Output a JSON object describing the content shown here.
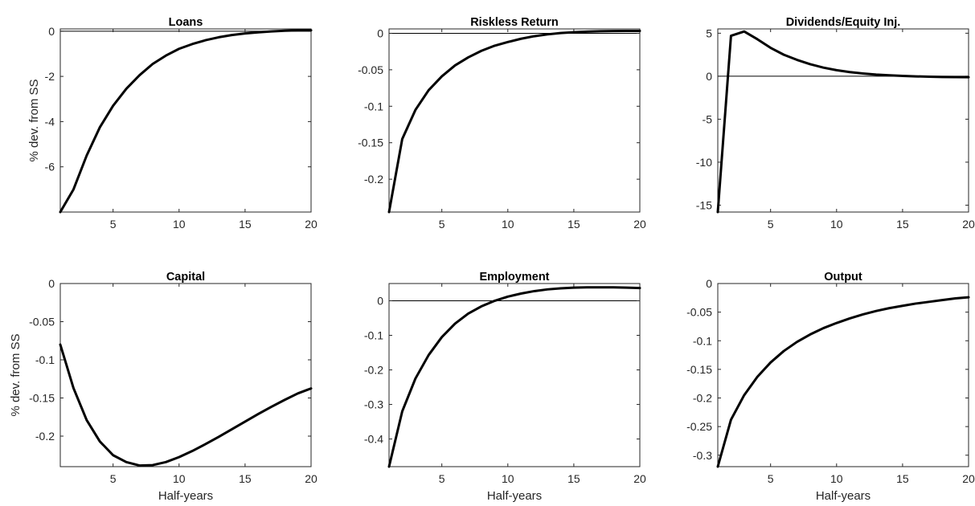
{
  "chart_data": [
    {
      "type": "line",
      "title": "Loans",
      "xlabel": "",
      "ylabel": "% dev. from SS",
      "xlim": [
        1,
        20
      ],
      "ylim": [
        -8,
        0.1
      ],
      "xticks": [
        5,
        10,
        15,
        20
      ],
      "yticks": [
        0,
        -2,
        -4,
        -6
      ],
      "ytick_labels": [
        "0",
        "-2",
        "-4",
        "-6"
      ],
      "zero_line": true,
      "x": [
        1,
        2,
        3,
        4,
        5,
        6,
        7,
        8,
        9,
        10,
        11,
        12,
        13,
        14,
        15,
        16,
        17,
        18,
        19,
        20
      ],
      "series": [
        {
          "values": [
            -8.0,
            -7.0,
            -5.5,
            -4.25,
            -3.3,
            -2.55,
            -1.95,
            -1.45,
            -1.08,
            -0.78,
            -0.57,
            -0.4,
            -0.27,
            -0.17,
            -0.1,
            -0.05,
            -0.01,
            0.02,
            0.04,
            0.04
          ],
          "color": "#000000"
        }
      ]
    },
    {
      "type": "line",
      "title": "Riskless Return",
      "xlabel": "",
      "ylabel": "",
      "xlim": [
        1,
        20
      ],
      "ylim": [
        -0.245,
        0.006
      ],
      "xticks": [
        5,
        10,
        15,
        20
      ],
      "yticks": [
        0,
        -0.05,
        -0.1,
        -0.15,
        -0.2
      ],
      "ytick_labels": [
        "0",
        "-0.05",
        "-0.1",
        "-0.15",
        "-0.2"
      ],
      "zero_line": true,
      "x": [
        1,
        2,
        3,
        4,
        5,
        6,
        7,
        8,
        9,
        10,
        11,
        12,
        13,
        14,
        15,
        16,
        17,
        18,
        19,
        20
      ],
      "series": [
        {
          "values": [
            -0.245,
            -0.145,
            -0.105,
            -0.078,
            -0.059,
            -0.044,
            -0.033,
            -0.024,
            -0.017,
            -0.012,
            -0.0075,
            -0.004,
            -0.0015,
            0.0003,
            0.0015,
            0.0023,
            0.0028,
            0.0031,
            0.0033,
            0.0033
          ],
          "color": "#000000"
        }
      ]
    },
    {
      "type": "line",
      "title": "Dividends/Equity Inj.",
      "xlabel": "",
      "ylabel": "",
      "xlim": [
        1,
        20
      ],
      "ylim": [
        -15.8,
        5.5
      ],
      "xticks": [
        5,
        10,
        15,
        20
      ],
      "yticks": [
        5,
        0,
        -5,
        -10,
        -15
      ],
      "ytick_labels": [
        "5",
        "0",
        "-5",
        "-10",
        "-15"
      ],
      "zero_line": true,
      "x": [
        1,
        2,
        3,
        4,
        5,
        6,
        7,
        8,
        9,
        10,
        11,
        12,
        13,
        14,
        15,
        16,
        17,
        18,
        19,
        20
      ],
      "series": [
        {
          "values": [
            -15.8,
            4.7,
            5.2,
            4.3,
            3.3,
            2.5,
            1.9,
            1.4,
            1.0,
            0.7,
            0.48,
            0.32,
            0.19,
            0.1,
            0.03,
            -0.02,
            -0.06,
            -0.09,
            -0.11,
            -0.12
          ],
          "color": "#000000"
        }
      ]
    },
    {
      "type": "line",
      "title": "Capital",
      "xlabel": "Half-years",
      "ylabel": "% dev. from SS",
      "xlim": [
        1,
        20
      ],
      "ylim": [
        -0.24,
        0
      ],
      "xticks": [
        5,
        10,
        15,
        20
      ],
      "yticks": [
        0,
        -0.05,
        -0.1,
        -0.15,
        -0.2
      ],
      "ytick_labels": [
        "0",
        "-0.05",
        "-0.1",
        "-0.15",
        "-0.2"
      ],
      "zero_line": false,
      "x": [
        1,
        2,
        3,
        4,
        5,
        6,
        7,
        8,
        9,
        10,
        11,
        12,
        13,
        14,
        15,
        16,
        17,
        18,
        19,
        20
      ],
      "series": [
        {
          "values": [
            -0.08,
            -0.137,
            -0.179,
            -0.207,
            -0.225,
            -0.234,
            -0.2385,
            -0.238,
            -0.234,
            -0.2275,
            -0.2195,
            -0.2105,
            -0.201,
            -0.191,
            -0.181,
            -0.171,
            -0.1615,
            -0.1525,
            -0.144,
            -0.1375
          ],
          "color": "#000000"
        }
      ]
    },
    {
      "type": "line",
      "title": "Employment",
      "xlabel": "Half-years",
      "ylabel": "",
      "xlim": [
        1,
        20
      ],
      "ylim": [
        -0.48,
        0.05
      ],
      "xticks": [
        5,
        10,
        15,
        20
      ],
      "yticks": [
        0,
        -0.1,
        -0.2,
        -0.3,
        -0.4
      ],
      "ytick_labels": [
        "0",
        "-0.1",
        "-0.2",
        "-0.3",
        "-0.4"
      ],
      "zero_line": true,
      "x": [
        1,
        2,
        3,
        4,
        5,
        6,
        7,
        8,
        9,
        10,
        11,
        12,
        13,
        14,
        15,
        16,
        17,
        18,
        19,
        20
      ],
      "series": [
        {
          "values": [
            -0.48,
            -0.32,
            -0.225,
            -0.157,
            -0.105,
            -0.066,
            -0.037,
            -0.016,
            0.0,
            0.012,
            0.021,
            0.028,
            0.033,
            0.036,
            0.038,
            0.039,
            0.039,
            0.039,
            0.038,
            0.037
          ],
          "color": "#000000"
        }
      ]
    },
    {
      "type": "line",
      "title": "Output",
      "xlabel": "Half-years",
      "ylabel": "",
      "xlim": [
        1,
        20
      ],
      "ylim": [
        -0.32,
        0
      ],
      "xticks": [
        5,
        10,
        15,
        20
      ],
      "yticks": [
        0,
        -0.05,
        -0.1,
        -0.15,
        -0.2,
        -0.25,
        -0.3
      ],
      "ytick_labels": [
        "0",
        "-0.05",
        "-0.1",
        "-0.15",
        "-0.2",
        "-0.25",
        "-0.3"
      ],
      "zero_line": false,
      "x": [
        1,
        2,
        3,
        4,
        5,
        6,
        7,
        8,
        9,
        10,
        11,
        12,
        13,
        14,
        15,
        16,
        17,
        18,
        19,
        20
      ],
      "series": [
        {
          "values": [
            -0.32,
            -0.238,
            -0.195,
            -0.163,
            -0.138,
            -0.118,
            -0.102,
            -0.089,
            -0.078,
            -0.069,
            -0.061,
            -0.054,
            -0.048,
            -0.043,
            -0.039,
            -0.035,
            -0.032,
            -0.029,
            -0.026,
            -0.024
          ],
          "color": "#000000"
        }
      ]
    }
  ]
}
